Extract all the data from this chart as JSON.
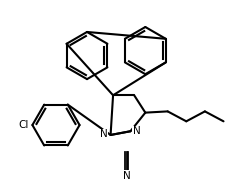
{
  "background_color": "#ffffff",
  "line_color": "#000000",
  "figsize": [
    2.46,
    1.93
  ],
  "dpi": 100,
  "lw": 1.5,
  "atoms": {
    "N1_label": "N",
    "N2_label": "N",
    "Cl_label": "Cl"
  },
  "bonds": [],
  "title": ""
}
